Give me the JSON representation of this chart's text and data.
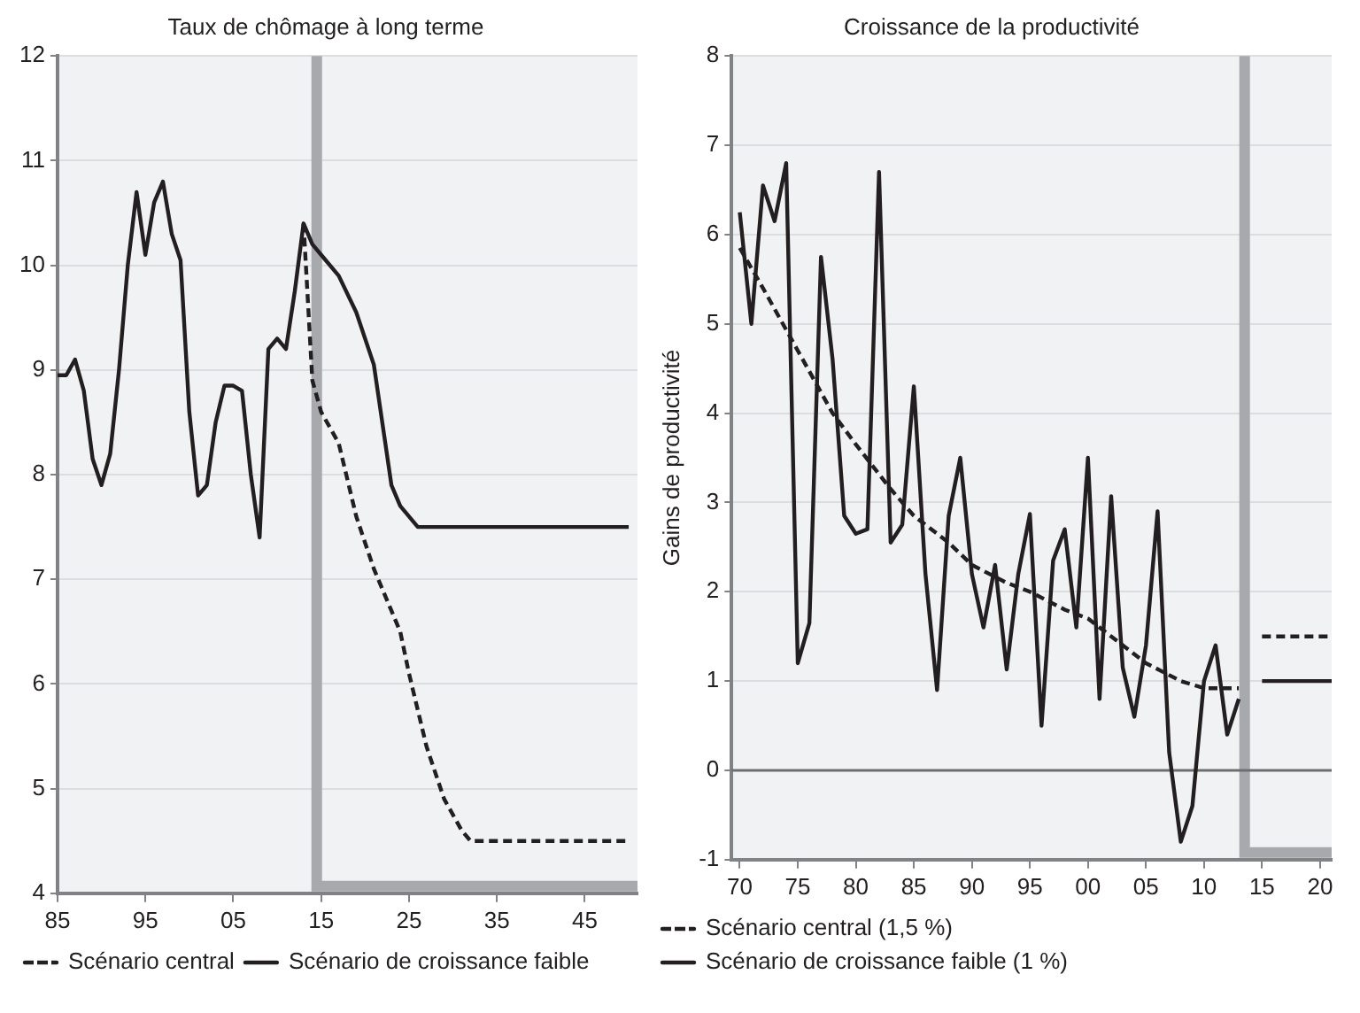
{
  "chart_data": [
    {
      "type": "line",
      "title": "Taux de chômage à long terme",
      "series": [
        {
          "name": "Scénario central",
          "color": "#231f20",
          "line_style": "dashed",
          "x": [
            2013,
            2014,
            2015,
            2017,
            2019,
            2021,
            2023,
            2024,
            2025,
            2027,
            2029,
            2031,
            2032,
            2050
          ],
          "values": [
            10.4,
            8.9,
            8.6,
            8.3,
            7.6,
            7.1,
            6.7,
            6.5,
            6.1,
            5.4,
            4.9,
            4.6,
            4.5,
            4.5
          ]
        },
        {
          "name": "Scénario de croissance faible",
          "color": "#231f20",
          "line_style": "solid",
          "x": [
            1985,
            1986,
            1987,
            1988,
            1989,
            1990,
            1991,
            1992,
            1993,
            1994,
            1995,
            1996,
            1997,
            1998,
            1999,
            2000,
            2001,
            2002,
            2003,
            2004,
            2005,
            2006,
            2007,
            2008,
            2009,
            2010,
            2011,
            2012,
            2013,
            2014,
            2015,
            2017,
            2019,
            2021,
            2023,
            2024,
            2026,
            2050
          ],
          "values": [
            8.95,
            8.95,
            9.1,
            8.8,
            8.15,
            7.9,
            8.2,
            9.0,
            10.0,
            10.7,
            10.1,
            10.6,
            10.8,
            10.3,
            10.05,
            8.6,
            7.8,
            7.9,
            8.5,
            8.85,
            8.85,
            8.8,
            8.0,
            7.4,
            9.2,
            9.3,
            9.2,
            9.75,
            10.4,
            10.2,
            10.1,
            9.9,
            9.55,
            9.05,
            7.9,
            7.7,
            7.5,
            7.5
          ]
        }
      ],
      "xlim": [
        1985,
        2051
      ],
      "xticks": [
        {
          "value": 1985,
          "label": "85"
        },
        {
          "value": 1995,
          "label": "95"
        },
        {
          "value": 2005,
          "label": "05"
        },
        {
          "value": 2015,
          "label": "15"
        },
        {
          "value": 2025,
          "label": "25"
        },
        {
          "value": 2035,
          "label": "35"
        },
        {
          "value": 2045,
          "label": "45"
        }
      ],
      "ylim": [
        4,
        12
      ],
      "yticks": [
        4,
        5,
        6,
        7,
        8,
        9,
        10,
        11,
        12
      ],
      "ref_lines": [
        {
          "axis": "x",
          "value": 2014.5,
          "color": "#a7a9ac"
        }
      ],
      "grid": "y",
      "legend": "bottom",
      "marker": "none"
    },
    {
      "type": "line",
      "title": "Croissance de la productivité",
      "ylabel": "Gains de productivité",
      "series": [
        {
          "name": "Scénario central (1,5 %)",
          "color": "#231f20",
          "line_style": "dashed",
          "x": [
            1970,
            1972,
            1975,
            1978,
            1980,
            1983,
            1985,
            1988,
            1990,
            1993,
            1995,
            1998,
            2000,
            2003,
            2005,
            2008,
            2010,
            2013,
            2014,
            2015,
            2021
          ],
          "values": [
            5.85,
            5.4,
            4.7,
            4.0,
            3.65,
            3.15,
            2.85,
            2.55,
            2.3,
            2.1,
            2.0,
            1.8,
            1.7,
            1.4,
            1.2,
            1.0,
            0.92,
            0.92,
            null,
            1.5,
            1.5
          ]
        },
        {
          "name": "Scénario de croissance faible (1 %)",
          "color": "#231f20",
          "line_style": "solid",
          "x": [
            1970,
            1971,
            1972,
            1973,
            1974,
            1975,
            1976,
            1977,
            1978,
            1979,
            1980,
            1981,
            1982,
            1983,
            1984,
            1985,
            1986,
            1987,
            1988,
            1989,
            1990,
            1991,
            1992,
            1993,
            1994,
            1995,
            1996,
            1997,
            1998,
            1999,
            2000,
            2001,
            2002,
            2003,
            2004,
            2005,
            2006,
            2007,
            2008,
            2009,
            2010,
            2011,
            2012,
            2013,
            2014,
            2015,
            2021
          ],
          "values": [
            6.25,
            5.0,
            6.55,
            6.15,
            6.8,
            1.2,
            1.65,
            5.75,
            4.6,
            2.85,
            2.65,
            2.7,
            6.7,
            2.55,
            2.75,
            4.3,
            2.2,
            0.9,
            2.85,
            3.5,
            2.2,
            1.6,
            2.3,
            1.13,
            2.2,
            2.87,
            0.5,
            2.35,
            2.7,
            1.6,
            3.5,
            0.8,
            3.07,
            1.15,
            0.6,
            1.4,
            2.9,
            0.2,
            -0.8,
            -0.4,
            1.0,
            1.4,
            0.4,
            0.8,
            null,
            1.0,
            1.0
          ]
        }
      ],
      "xlim": [
        1969.3,
        2021
      ],
      "xticks": [
        {
          "value": 1970,
          "label": "70"
        },
        {
          "value": 1975,
          "label": "75"
        },
        {
          "value": 1980,
          "label": "80"
        },
        {
          "value": 1985,
          "label": "85"
        },
        {
          "value": 1990,
          "label": "90"
        },
        {
          "value": 1995,
          "label": "95"
        },
        {
          "value": 2000,
          "label": "00"
        },
        {
          "value": 2005,
          "label": "05"
        },
        {
          "value": 2010,
          "label": "10"
        },
        {
          "value": 2015,
          "label": "15"
        },
        {
          "value": 2020,
          "label": "20"
        }
      ],
      "ylim": [
        -1,
        8
      ],
      "yticks": [
        -1,
        0,
        1,
        2,
        3,
        4,
        5,
        6,
        7,
        8
      ],
      "ref_lines": [
        {
          "axis": "x",
          "value": 2013.5,
          "color": "#a7a9ac"
        },
        {
          "axis": "y",
          "value": 0,
          "color": "#6d6e71"
        }
      ],
      "grid": "y",
      "legend": "bottom",
      "marker": "none"
    }
  ]
}
